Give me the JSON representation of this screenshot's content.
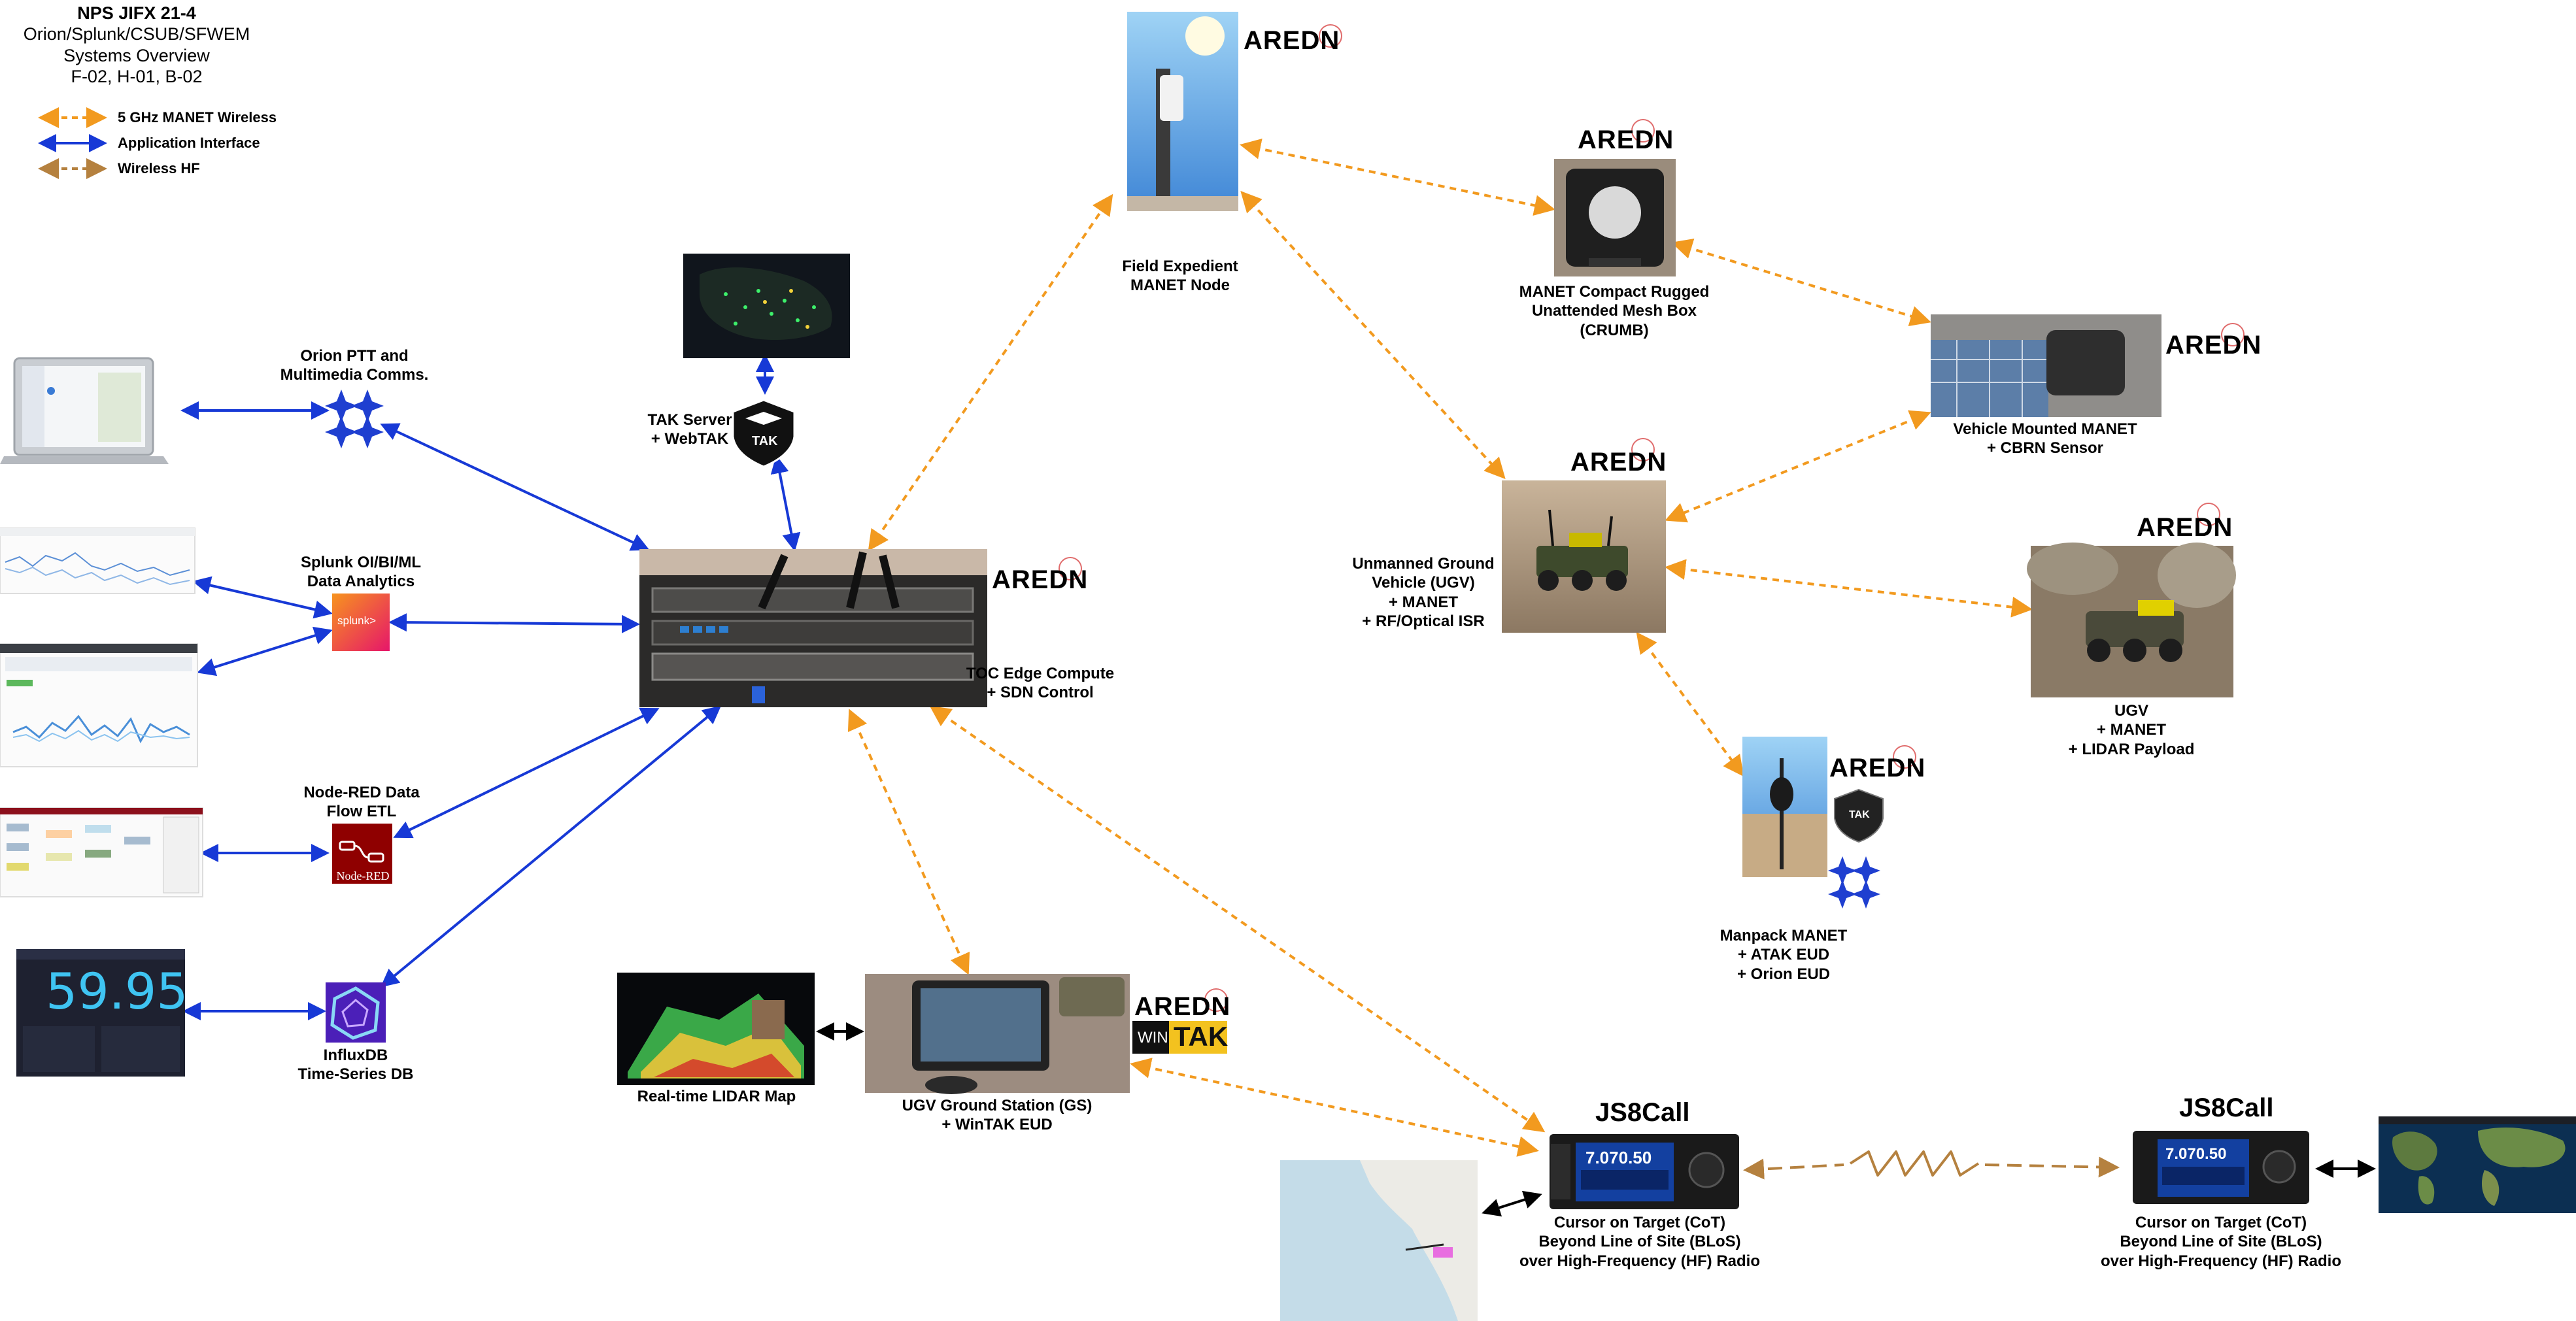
{
  "title": {
    "main": "NPS JIFX 21-4",
    "lines": [
      "Orion/Splunk/CSUB/SFWEM",
      "Systems Overview",
      "F-02, H-01, B-02"
    ]
  },
  "legend": [
    {
      "label": "5 GHz MANET Wireless",
      "color": "#f29a1f",
      "style": "dashed"
    },
    {
      "label": "Application Interface",
      "color": "#1739d6",
      "style": "solid"
    },
    {
      "label": "Wireless HF",
      "color": "#b5813f",
      "style": "dashed"
    }
  ],
  "nodes": {
    "orion_ptt": [
      "Orion PTT and",
      "Multimedia Comms."
    ],
    "splunk": [
      "Splunk OI/BI/ML",
      "Data Analytics"
    ],
    "node_red": [
      "Node-RED Data",
      "Flow ETL"
    ],
    "influxdb": [
      "InfluxDB",
      "Time-Series DB"
    ],
    "tak_server": [
      "TAK Server",
      "+ WebTAK"
    ],
    "toc_edge": [
      "TOC Edge Compute",
      "+ SDN Control"
    ],
    "field_node": [
      "Field Expedient",
      "MANET Node"
    ],
    "crumb": [
      "MANET Compact Rugged",
      "Unattended Mesh Box",
      "(CRUMB)"
    ],
    "vehicle": [
      "Vehicle Mounted MANET",
      "+ CBRN Sensor"
    ],
    "ugv1": [
      "Unmanned Ground",
      "Vehicle (UGV)",
      "+ MANET",
      "+ RF/Optical ISR"
    ],
    "ugv2": [
      "UGV",
      "+ MANET",
      "+ LIDAR Payload"
    ],
    "manpack": [
      "Manpack MANET",
      "+ ATAK EUD",
      "+ Orion EUD"
    ],
    "lidar_map": [
      "Real-time LIDAR Map"
    ],
    "ugv_gs": [
      "UGV Ground Station (GS)",
      "+ WinTAK EUD"
    ],
    "cot1": [
      "Cursor on Target (CoT)",
      "Beyond Line of Site (BLoS)",
      "over High-Frequency (HF) Radio"
    ],
    "cot2": [
      "Cursor on Target (CoT)",
      "Beyond Line of Site (BLoS)",
      "over High-Frequency (HF) Radio"
    ]
  },
  "logos": {
    "aredn": "AREDN",
    "js8call": "JS8Call",
    "tak": "TAK",
    "wintak_win": "WIN",
    "wintak_tak": "TAK",
    "splunk": "splunk>",
    "node_red": "Node-RED"
  },
  "screens": {
    "influx_value": "59.95",
    "radio_freq": "7.070.50"
  },
  "icons": [
    "laptop-icon",
    "orion-star-icon",
    "tak-shield-icon",
    "splunk-logo-icon",
    "node-red-logo-icon",
    "influxdb-logo-icon",
    "aredn-logo-icon",
    "js8call-logo-icon",
    "hf-radio-icon"
  ],
  "colors": {
    "manet": "#f29a1f",
    "app": "#1739d6",
    "hf": "#b5813f",
    "black_link": "#000000"
  }
}
